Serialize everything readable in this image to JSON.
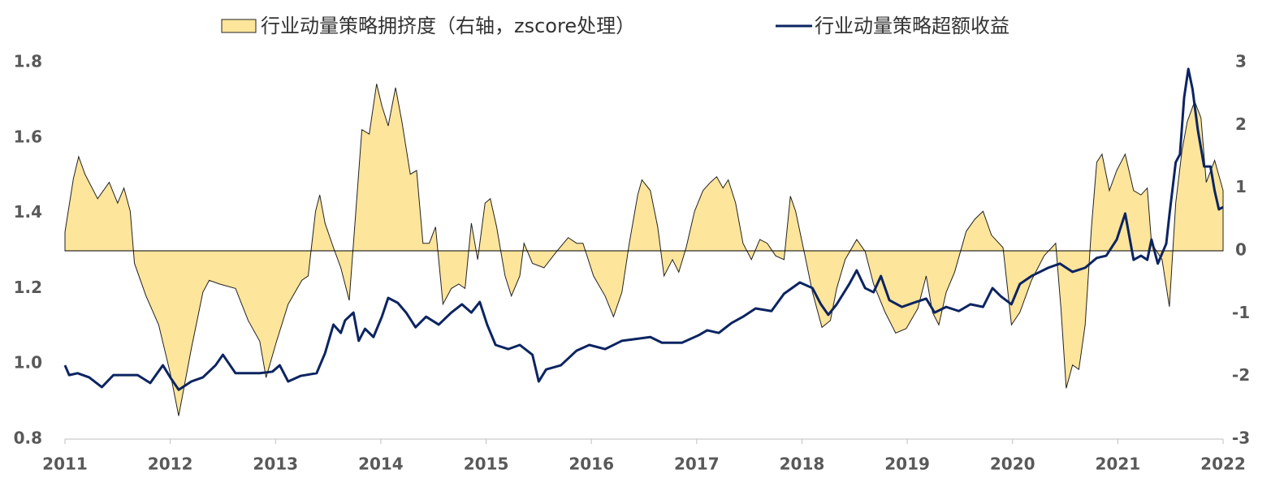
{
  "chart_data": {
    "type": "line",
    "xlim": [
      2011,
      2022
    ],
    "xticks": [
      2011,
      2012,
      2013,
      2014,
      2015,
      2016,
      2017,
      2018,
      2019,
      2020,
      2021,
      2022
    ],
    "ylim": [
      0.8,
      1.8
    ],
    "yticks": [
      0.8,
      {
        "value": 1,
        "label": "1.0"
      },
      1.2,
      1.4,
      1.6,
      1.8
    ],
    "y2lim": [
      -3,
      3
    ],
    "y2ticks": [
      -3,
      -2,
      -1,
      0,
      1,
      2,
      3
    ],
    "legend": "top",
    "series": [
      {
        "name": "行业动量策略拥挤度（右轴，zscore处理）",
        "type": "area",
        "axis": "y2",
        "color": "#fde59c",
        "x": [
          2011.0,
          2011.08,
          2011.13,
          2011.19,
          2011.31,
          2011.42,
          2011.5,
          2011.56,
          2011.62,
          2011.66,
          2011.77,
          2011.89,
          2012.0,
          2012.08,
          2012.2,
          2012.31,
          2012.37,
          2012.47,
          2012.62,
          2012.74,
          2012.85,
          2012.91,
          2013.01,
          2013.12,
          2013.25,
          2013.31,
          2013.38,
          2013.42,
          2013.47,
          2013.55,
          2013.62,
          2013.7,
          2013.78,
          2013.82,
          2013.89,
          2013.96,
          2014.01,
          2014.07,
          2014.14,
          2014.2,
          2014.28,
          2014.34,
          2014.4,
          2014.46,
          2014.52,
          2014.59,
          2014.67,
          2014.74,
          2014.8,
          2014.86,
          2014.92,
          2014.99,
          2015.04,
          2015.1,
          2015.18,
          2015.24,
          2015.32,
          2015.36,
          2015.44,
          2015.55,
          2015.67,
          2015.78,
          2015.86,
          2015.92,
          2016.02,
          2016.13,
          2016.21,
          2016.29,
          2016.36,
          2016.44,
          2016.48,
          2016.56,
          2016.63,
          2016.69,
          2016.77,
          2016.83,
          2016.9,
          2016.98,
          2017.06,
          2017.13,
          2017.19,
          2017.25,
          2017.3,
          2017.37,
          2017.44,
          2017.52,
          2017.6,
          2017.67,
          2017.75,
          2017.83,
          2017.89,
          2017.94,
          2018.02,
          2018.1,
          2018.19,
          2018.27,
          2018.33,
          2018.41,
          2018.52,
          2018.6,
          2018.68,
          2018.79,
          2018.89,
          2018.99,
          2019.1,
          2019.18,
          2019.24,
          2019.3,
          2019.37,
          2019.45,
          2019.56,
          2019.64,
          2019.72,
          2019.8,
          2019.91,
          2019.99,
          2020.07,
          2020.18,
          2020.3,
          2020.41,
          2020.46,
          2020.51,
          2020.57,
          2020.63,
          2020.69,
          2020.75,
          2020.8,
          2020.85,
          2020.92,
          2020.99,
          2021.07,
          2021.15,
          2021.22,
          2021.28,
          2021.32,
          2021.42,
          2021.49,
          2021.55,
          2021.61,
          2021.66,
          2021.73,
          2021.79,
          2021.84,
          2021.92,
          2022.0
        ],
        "values": [
          0.3,
          1.15,
          1.5,
          1.22,
          0.83,
          1.09,
          0.76,
          1.0,
          0.63,
          -0.2,
          -0.72,
          -1.18,
          -1.95,
          -2.63,
          -1.56,
          -0.66,
          -0.47,
          -0.53,
          -0.6,
          -1.11,
          -1.44,
          -2.02,
          -1.44,
          -0.85,
          -0.47,
          -0.4,
          0.63,
          0.89,
          0.44,
          0.05,
          -0.27,
          -0.79,
          1.02,
          1.93,
          1.86,
          2.66,
          2.31,
          1.99,
          2.6,
          2.06,
          1.22,
          1.28,
          0.12,
          0.12,
          0.38,
          -0.85,
          -0.6,
          -0.53,
          -0.6,
          0.44,
          -0.14,
          0.76,
          0.83,
          0.38,
          -0.4,
          -0.72,
          -0.4,
          0.12,
          -0.2,
          -0.27,
          -0.01,
          0.21,
          0.12,
          0.12,
          -0.4,
          -0.72,
          -1.05,
          -0.66,
          0.12,
          0.89,
          1.13,
          0.96,
          0.38,
          -0.4,
          -0.14,
          -0.34,
          0.05,
          0.63,
          0.96,
          1.09,
          1.18,
          1.0,
          1.13,
          0.76,
          0.12,
          -0.14,
          0.18,
          0.12,
          -0.08,
          -0.14,
          0.87,
          0.63,
          -0.01,
          -0.66,
          -1.22,
          -1.11,
          -0.6,
          -0.14,
          0.18,
          -0.01,
          -0.53,
          -0.98,
          -1.31,
          -1.24,
          -0.92,
          -0.4,
          -0.98,
          -1.18,
          -0.66,
          -0.34,
          0.31,
          0.5,
          0.63,
          0.25,
          0.05,
          -1.18,
          -0.98,
          -0.47,
          -0.08,
          0.12,
          -0.92,
          -2.19,
          -1.82,
          -1.89,
          -1.18,
          0.38,
          1.41,
          1.54,
          0.96,
          1.28,
          1.54,
          0.96,
          0.89,
          1.0,
          0.12,
          -0.14,
          -0.89,
          0.76,
          1.6,
          2.06,
          2.38,
          2.12,
          1.09,
          1.44,
          0.96
        ]
      },
      {
        "name": "行业动量策略超额收益",
        "type": "line",
        "axis": "y",
        "color": "#0c2461",
        "x": [
          2011.0,
          2011.04,
          2011.12,
          2011.23,
          2011.35,
          2011.46,
          2011.58,
          2011.69,
          2011.81,
          2011.93,
          2012.0,
          2012.08,
          2012.2,
          2012.31,
          2012.43,
          2012.5,
          2012.62,
          2012.74,
          2012.85,
          2012.97,
          2013.04,
          2013.12,
          2013.24,
          2013.39,
          2013.47,
          2013.55,
          2013.62,
          2013.66,
          2013.74,
          2013.79,
          2013.85,
          2013.93,
          2014.01,
          2014.07,
          2014.16,
          2014.24,
          2014.33,
          2014.43,
          2014.55,
          2014.67,
          2014.77,
          2014.86,
          2014.94,
          2015.01,
          2015.09,
          2015.21,
          2015.32,
          2015.44,
          2015.5,
          2015.57,
          2015.71,
          2015.86,
          2015.98,
          2016.13,
          2016.29,
          2016.4,
          2016.56,
          2016.67,
          2016.86,
          2017.02,
          2017.1,
          2017.21,
          2017.33,
          2017.44,
          2017.56,
          2017.71,
          2017.83,
          2017.98,
          2018.1,
          2018.18,
          2018.25,
          2018.33,
          2018.45,
          2018.52,
          2018.6,
          2018.68,
          2018.75,
          2018.83,
          2018.95,
          2019.06,
          2019.18,
          2019.26,
          2019.37,
          2019.49,
          2019.6,
          2019.72,
          2019.81,
          2019.89,
          2019.99,
          2020.07,
          2020.18,
          2020.34,
          2020.45,
          2020.57,
          2020.69,
          2020.8,
          2020.89,
          2020.99,
          2021.07,
          2021.15,
          2021.22,
          2021.28,
          2021.32,
          2021.38,
          2021.46,
          2021.49,
          2021.55,
          2021.59,
          2021.63,
          2021.67,
          2021.71,
          2021.76,
          2021.82,
          2021.88,
          2021.92,
          2021.96,
          2022.0
        ],
        "values": [
          0.996,
          0.97,
          0.975,
          0.964,
          0.938,
          0.97,
          0.97,
          0.97,
          0.949,
          0.996,
          0.964,
          0.931,
          0.953,
          0.964,
          0.996,
          1.024,
          0.975,
          0.975,
          0.975,
          0.979,
          0.996,
          0.953,
          0.968,
          0.975,
          1.028,
          1.104,
          1.082,
          1.115,
          1.136,
          1.061,
          1.093,
          1.071,
          1.125,
          1.175,
          1.162,
          1.136,
          1.097,
          1.125,
          1.104,
          1.136,
          1.158,
          1.136,
          1.164,
          1.104,
          1.05,
          1.039,
          1.05,
          1.024,
          0.953,
          0.985,
          0.996,
          1.035,
          1.05,
          1.039,
          1.061,
          1.065,
          1.071,
          1.056,
          1.056,
          1.076,
          1.089,
          1.082,
          1.108,
          1.125,
          1.147,
          1.14,
          1.186,
          1.216,
          1.201,
          1.158,
          1.13,
          1.158,
          1.212,
          1.248,
          1.201,
          1.19,
          1.233,
          1.169,
          1.151,
          1.162,
          1.173,
          1.136,
          1.151,
          1.14,
          1.158,
          1.151,
          1.201,
          1.179,
          1.158,
          1.212,
          1.233,
          1.255,
          1.266,
          1.244,
          1.255,
          1.281,
          1.287,
          1.33,
          1.399,
          1.276,
          1.287,
          1.276,
          1.33,
          1.266,
          1.319,
          1.395,
          1.535,
          1.556,
          1.707,
          1.783,
          1.729,
          1.621,
          1.524,
          1.524,
          1.459,
          1.41,
          1.416
        ]
      }
    ]
  }
}
